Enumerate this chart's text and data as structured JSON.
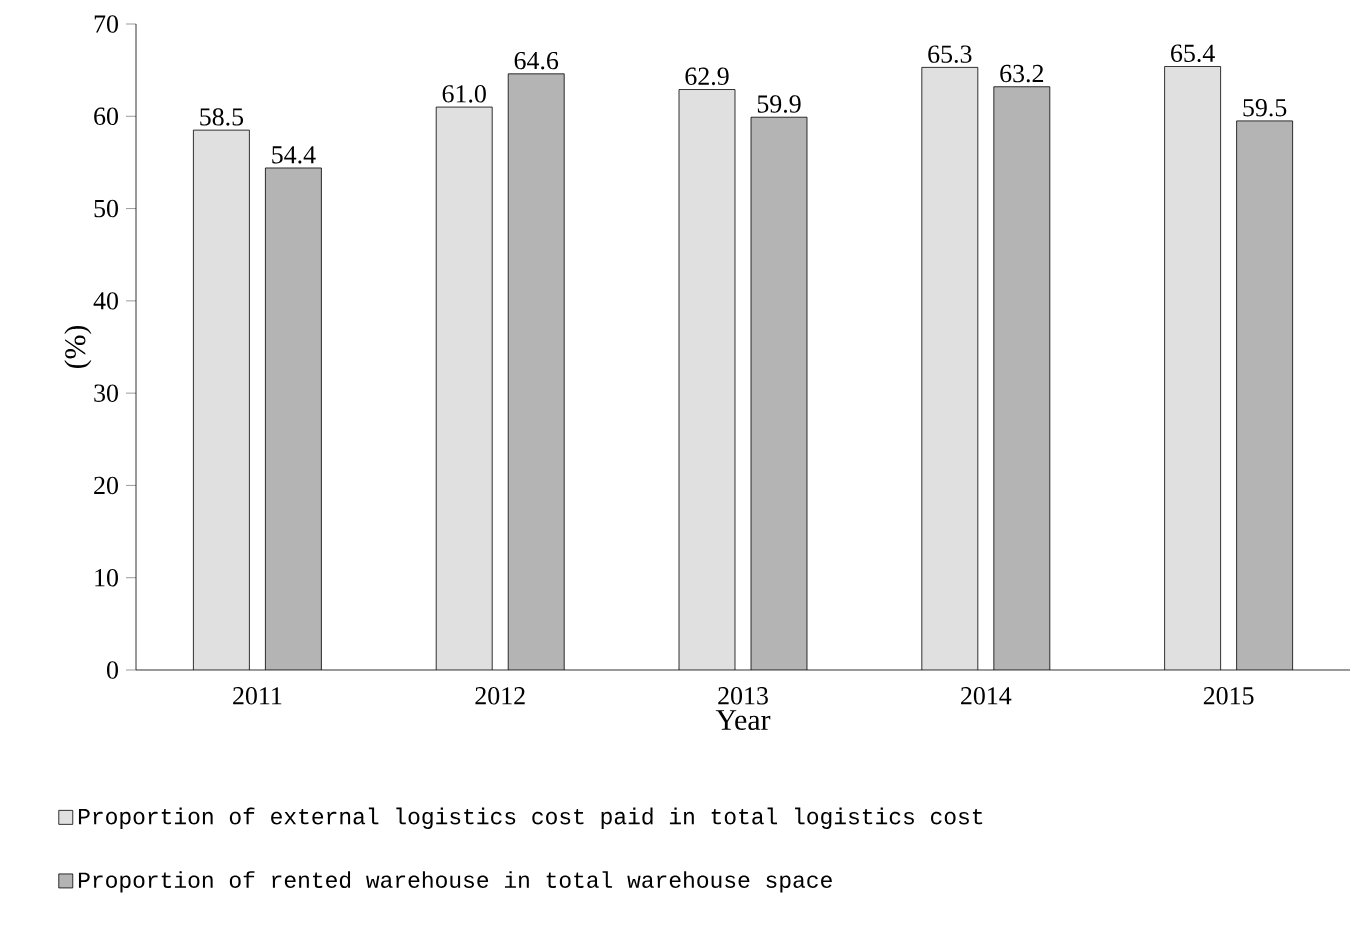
{
  "chart_data": {
    "type": "bar",
    "xlabel": "Year",
    "ylabel": "(%)",
    "categories": [
      "2011",
      "2012",
      "2013",
      "2014",
      "2015"
    ],
    "series": [
      {
        "name": "Proportion of external logistics cost paid in total logistics cost",
        "color": "#e0e0e0",
        "values": [
          58.5,
          61.0,
          62.9,
          65.3,
          65.4
        ],
        "value_labels": [
          "58.5",
          "61.0",
          "62.9",
          "65.3",
          "65.4"
        ]
      },
      {
        "name": "Proportion of rented warehouse in total warehouse space",
        "color": "#b4b4b4",
        "values": [
          54.4,
          64.6,
          59.9,
          63.2,
          59.5
        ],
        "value_labels": [
          "54.4",
          "64.6",
          "59.9",
          "63.2",
          "59.5"
        ]
      }
    ],
    "ylim": [
      0,
      70
    ],
    "yticks": [
      0,
      10,
      20,
      30,
      40,
      50,
      60,
      70
    ],
    "legend": "bottom",
    "grid": false
  }
}
